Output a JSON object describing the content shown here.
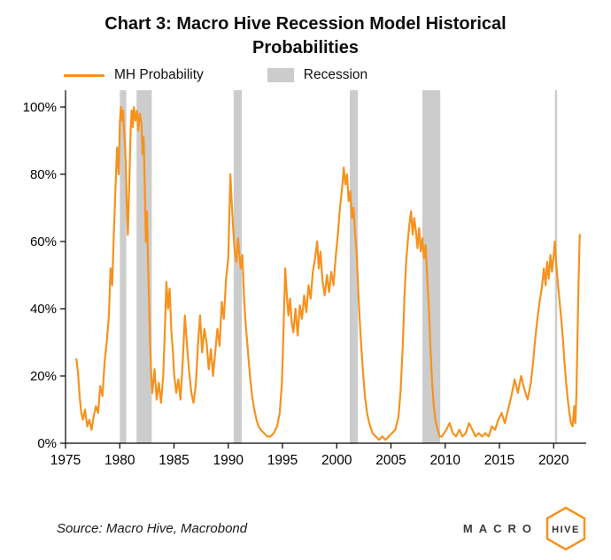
{
  "title": "Chart 3: Macro Hive Recession Model Historical Probabilities",
  "legend": {
    "series_label": "MH Probability",
    "recession_label": "Recession"
  },
  "colors": {
    "line": "#F6921E",
    "recession": "#CCCCCC",
    "axis": "#000000"
  },
  "source": "Source: Macro Hive, Macrobond",
  "logo": {
    "macro": "MACRO",
    "hive": "HIVE",
    "accent": "#F6921E"
  },
  "chart_data": {
    "type": "line",
    "title": "Chart 3: Macro Hive Recession Model Historical Probabilities",
    "xlabel": "",
    "ylabel": "",
    "legend_position": "top",
    "grid": false,
    "xlim": [
      1975,
      2023
    ],
    "ylim": [
      0,
      100
    ],
    "x_ticks": [
      1975,
      1980,
      1985,
      1990,
      1995,
      2000,
      2005,
      2010,
      2015,
      2020
    ],
    "y_tick_values": [
      0,
      20,
      40,
      60,
      80,
      100
    ],
    "y_ticks": [
      "0%",
      "20%",
      "40%",
      "60%",
      "80%",
      "100%"
    ],
    "recession_bands": [
      [
        1980.0,
        1980.6
      ],
      [
        1981.55,
        1982.95
      ],
      [
        1990.5,
        1991.25
      ],
      [
        2001.2,
        2001.95
      ],
      [
        2007.9,
        2009.55
      ],
      [
        2020.12,
        2020.32
      ]
    ],
    "series": [
      {
        "name": "MH Probability",
        "points": [
          [
            1976.0,
            25
          ],
          [
            1976.15,
            21
          ],
          [
            1976.3,
            14
          ],
          [
            1976.45,
            9
          ],
          [
            1976.6,
            7
          ],
          [
            1976.8,
            10
          ],
          [
            1977.0,
            5
          ],
          [
            1977.2,
            7
          ],
          [
            1977.4,
            4
          ],
          [
            1977.6,
            8
          ],
          [
            1977.8,
            11
          ],
          [
            1978.0,
            9
          ],
          [
            1978.2,
            17
          ],
          [
            1978.4,
            14
          ],
          [
            1978.6,
            24
          ],
          [
            1978.8,
            30
          ],
          [
            1979.0,
            38
          ],
          [
            1979.15,
            52
          ],
          [
            1979.3,
            47
          ],
          [
            1979.45,
            62
          ],
          [
            1979.6,
            75
          ],
          [
            1979.75,
            88
          ],
          [
            1979.9,
            80
          ],
          [
            1980.0,
            95
          ],
          [
            1980.1,
            100
          ],
          [
            1980.2,
            96
          ],
          [
            1980.3,
            99
          ],
          [
            1980.45,
            90
          ],
          [
            1980.55,
            84
          ],
          [
            1980.65,
            70
          ],
          [
            1980.75,
            62
          ],
          [
            1980.9,
            80
          ],
          [
            1981.0,
            93
          ],
          [
            1981.1,
            99
          ],
          [
            1981.2,
            94
          ],
          [
            1981.3,
            100
          ],
          [
            1981.45,
            96
          ],
          [
            1981.6,
            99
          ],
          [
            1981.7,
            93
          ],
          [
            1981.85,
            98
          ],
          [
            1982.0,
            95
          ],
          [
            1982.1,
            86
          ],
          [
            1982.2,
            91
          ],
          [
            1982.3,
            78
          ],
          [
            1982.4,
            60
          ],
          [
            1982.5,
            69
          ],
          [
            1982.6,
            55
          ],
          [
            1982.7,
            42
          ],
          [
            1982.8,
            30
          ],
          [
            1982.9,
            20
          ],
          [
            1983.0,
            15
          ],
          [
            1983.2,
            22
          ],
          [
            1983.4,
            13
          ],
          [
            1983.6,
            18
          ],
          [
            1983.8,
            12
          ],
          [
            1984.0,
            20
          ],
          [
            1984.15,
            33
          ],
          [
            1984.3,
            48
          ],
          [
            1984.45,
            40
          ],
          [
            1984.6,
            46
          ],
          [
            1984.75,
            34
          ],
          [
            1984.9,
            27
          ],
          [
            1985.0,
            21
          ],
          [
            1985.2,
            15
          ],
          [
            1985.4,
            19
          ],
          [
            1985.6,
            13
          ],
          [
            1985.8,
            24
          ],
          [
            1986.0,
            38
          ],
          [
            1986.2,
            29
          ],
          [
            1986.4,
            21
          ],
          [
            1986.6,
            15
          ],
          [
            1986.8,
            12
          ],
          [
            1987.0,
            17
          ],
          [
            1987.2,
            29
          ],
          [
            1987.4,
            38
          ],
          [
            1987.6,
            27
          ],
          [
            1987.8,
            34
          ],
          [
            1988.0,
            30
          ],
          [
            1988.2,
            22
          ],
          [
            1988.4,
            28
          ],
          [
            1988.6,
            20
          ],
          [
            1988.8,
            27
          ],
          [
            1989.0,
            34
          ],
          [
            1989.2,
            29
          ],
          [
            1989.4,
            42
          ],
          [
            1989.6,
            37
          ],
          [
            1989.8,
            49
          ],
          [
            1990.0,
            55
          ],
          [
            1990.1,
            68
          ],
          [
            1990.2,
            80
          ],
          [
            1990.3,
            73
          ],
          [
            1990.45,
            64
          ],
          [
            1990.6,
            57
          ],
          [
            1990.75,
            54
          ],
          [
            1990.9,
            61
          ],
          [
            1991.0,
            57
          ],
          [
            1991.15,
            52
          ],
          [
            1991.3,
            56
          ],
          [
            1991.45,
            44
          ],
          [
            1991.6,
            36
          ],
          [
            1991.8,
            28
          ],
          [
            1992.0,
            20
          ],
          [
            1992.2,
            14
          ],
          [
            1992.4,
            10
          ],
          [
            1992.6,
            7
          ],
          [
            1992.8,
            5
          ],
          [
            1993.0,
            4
          ],
          [
            1993.3,
            3
          ],
          [
            1993.6,
            2
          ],
          [
            1993.9,
            2
          ],
          [
            1994.2,
            3
          ],
          [
            1994.5,
            5
          ],
          [
            1994.75,
            9
          ],
          [
            1994.95,
            18
          ],
          [
            1995.1,
            34
          ],
          [
            1995.25,
            52
          ],
          [
            1995.4,
            44
          ],
          [
            1995.55,
            38
          ],
          [
            1995.7,
            43
          ],
          [
            1995.85,
            36
          ],
          [
            1996.0,
            33
          ],
          [
            1996.2,
            40
          ],
          [
            1996.4,
            32
          ],
          [
            1996.6,
            41
          ],
          [
            1996.8,
            37
          ],
          [
            1997.0,
            44
          ],
          [
            1997.2,
            39
          ],
          [
            1997.4,
            47
          ],
          [
            1997.6,
            43
          ],
          [
            1997.8,
            51
          ],
          [
            1998.0,
            55
          ],
          [
            1998.2,
            60
          ],
          [
            1998.35,
            52
          ],
          [
            1998.5,
            57
          ],
          [
            1998.7,
            48
          ],
          [
            1998.9,
            44
          ],
          [
            1999.1,
            50
          ],
          [
            1999.3,
            45
          ],
          [
            1999.5,
            51
          ],
          [
            1999.7,
            47
          ],
          [
            1999.9,
            55
          ],
          [
            2000.1,
            62
          ],
          [
            2000.3,
            70
          ],
          [
            2000.5,
            76
          ],
          [
            2000.65,
            82
          ],
          [
            2000.8,
            77
          ],
          [
            2000.95,
            80
          ],
          [
            2001.1,
            72
          ],
          [
            2001.25,
            75
          ],
          [
            2001.4,
            67
          ],
          [
            2001.55,
            70
          ],
          [
            2001.7,
            62
          ],
          [
            2001.85,
            56
          ],
          [
            2002.0,
            44
          ],
          [
            2002.2,
            32
          ],
          [
            2002.4,
            22
          ],
          [
            2002.6,
            14
          ],
          [
            2002.8,
            9
          ],
          [
            2003.0,
            6
          ],
          [
            2003.3,
            3
          ],
          [
            2003.6,
            2
          ],
          [
            2003.9,
            1
          ],
          [
            2004.2,
            2
          ],
          [
            2004.5,
            1
          ],
          [
            2004.8,
            2
          ],
          [
            2005.1,
            3
          ],
          [
            2005.4,
            4
          ],
          [
            2005.7,
            8
          ],
          [
            2005.9,
            16
          ],
          [
            2006.1,
            30
          ],
          [
            2006.25,
            44
          ],
          [
            2006.4,
            54
          ],
          [
            2006.55,
            60
          ],
          [
            2006.7,
            65
          ],
          [
            2006.85,
            69
          ],
          [
            2007.0,
            62
          ],
          [
            2007.15,
            67
          ],
          [
            2007.3,
            63
          ],
          [
            2007.45,
            58
          ],
          [
            2007.6,
            64
          ],
          [
            2007.75,
            57
          ],
          [
            2007.9,
            61
          ],
          [
            2008.05,
            55
          ],
          [
            2008.2,
            59
          ],
          [
            2008.35,
            49
          ],
          [
            2008.5,
            40
          ],
          [
            2008.65,
            28
          ],
          [
            2008.8,
            18
          ],
          [
            2008.95,
            11
          ],
          [
            2009.1,
            7
          ],
          [
            2009.3,
            4
          ],
          [
            2009.5,
            2
          ],
          [
            2009.7,
            2
          ],
          [
            2009.9,
            3
          ],
          [
            2010.1,
            4
          ],
          [
            2010.4,
            6
          ],
          [
            2010.7,
            3
          ],
          [
            2011.0,
            2
          ],
          [
            2011.3,
            4
          ],
          [
            2011.6,
            2
          ],
          [
            2011.9,
            3
          ],
          [
            2012.2,
            6
          ],
          [
            2012.5,
            4
          ],
          [
            2012.8,
            2
          ],
          [
            2013.1,
            3
          ],
          [
            2013.4,
            2
          ],
          [
            2013.7,
            3
          ],
          [
            2014.0,
            2
          ],
          [
            2014.3,
            5
          ],
          [
            2014.6,
            4
          ],
          [
            2014.9,
            7
          ],
          [
            2015.2,
            9
          ],
          [
            2015.5,
            6
          ],
          [
            2015.8,
            10
          ],
          [
            2016.1,
            14
          ],
          [
            2016.4,
            19
          ],
          [
            2016.7,
            15
          ],
          [
            2017.0,
            20
          ],
          [
            2017.3,
            16
          ],
          [
            2017.6,
            13
          ],
          [
            2017.9,
            18
          ],
          [
            2018.1,
            24
          ],
          [
            2018.3,
            31
          ],
          [
            2018.5,
            37
          ],
          [
            2018.7,
            42
          ],
          [
            2018.9,
            46
          ],
          [
            2019.1,
            52
          ],
          [
            2019.25,
            47
          ],
          [
            2019.4,
            54
          ],
          [
            2019.55,
            49
          ],
          [
            2019.7,
            56
          ],
          [
            2019.85,
            51
          ],
          [
            2020.0,
            56
          ],
          [
            2020.1,
            60
          ],
          [
            2020.25,
            53
          ],
          [
            2020.4,
            47
          ],
          [
            2020.55,
            42
          ],
          [
            2020.7,
            37
          ],
          [
            2020.85,
            31
          ],
          [
            2021.0,
            24
          ],
          [
            2021.15,
            18
          ],
          [
            2021.3,
            13
          ],
          [
            2021.45,
            9
          ],
          [
            2021.6,
            6
          ],
          [
            2021.75,
            5
          ],
          [
            2021.9,
            11
          ],
          [
            2022.0,
            6
          ],
          [
            2022.1,
            15
          ],
          [
            2022.2,
            32
          ],
          [
            2022.3,
            48
          ],
          [
            2022.4,
            62
          ]
        ]
      }
    ]
  }
}
